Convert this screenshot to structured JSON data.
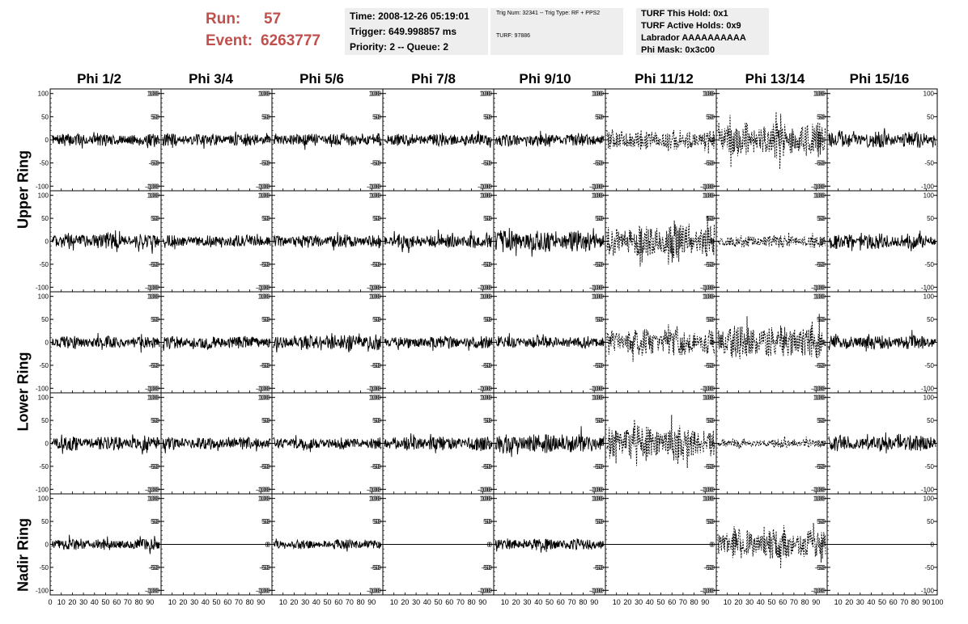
{
  "header": {
    "run_label": "Run:",
    "run_value": "57",
    "event_label": "Event:",
    "event_value": "6263777",
    "time": "Time: 2008-12-26 05:19:01",
    "trigger": "Trigger: 649.998857 ms",
    "priority": "Priority: 2 -- Queue: 2",
    "trig_num": "Trig Num: 32341 -- Trig Type: RF + PPS2",
    "turf": "TURF: 97886",
    "turf_this_hold": "TURF This Hold: 0x1",
    "turf_active_holds": "TURF Active Holds: 0x9",
    "labrador": "Labrador AAAAAAAAAA",
    "phi_mask": "Phi Mask: 0x3c00"
  },
  "columns": [
    "Phi 1/2",
    "Phi 3/4",
    "Phi 5/6",
    "Phi 7/8",
    "Phi 9/10",
    "Phi 11/12",
    "Phi 13/14",
    "Phi 15/16"
  ],
  "rows": [
    "Upper Ring",
    "Upper Ring",
    "Lower Ring",
    "Lower Ring",
    "Nadir Ring"
  ],
  "ring_labels": [
    "Upper Ring",
    "Lower Ring",
    "Nadir Ring"
  ],
  "chart_data": {
    "type": "line",
    "xlim": [
      0,
      100
    ],
    "ylim": [
      -110,
      110
    ],
    "y_ticks": [
      -100,
      -50,
      0,
      50,
      100
    ],
    "x_tick_labels": [
      "0",
      "10",
      "20",
      "30",
      "40",
      "50",
      "60",
      "70",
      "80",
      "90",
      "100"
    ],
    "line_color": "#000000",
    "masked_style": "dashed",
    "panels": [
      {
        "row": 0,
        "col": 0,
        "amplitude": 14,
        "style": "solid"
      },
      {
        "row": 0,
        "col": 1,
        "amplitude": 14,
        "style": "solid"
      },
      {
        "row": 0,
        "col": 2,
        "amplitude": 15,
        "style": "solid"
      },
      {
        "row": 0,
        "col": 3,
        "amplitude": 14,
        "style": "solid"
      },
      {
        "row": 0,
        "col": 4,
        "amplitude": 14,
        "style": "solid"
      },
      {
        "row": 0,
        "col": 5,
        "amplitude": 22,
        "style": "dashed"
      },
      {
        "row": 0,
        "col": 6,
        "amplitude": 40,
        "style": "dashed"
      },
      {
        "row": 0,
        "col": 7,
        "amplitude": 18,
        "style": "solid"
      },
      {
        "row": 1,
        "col": 0,
        "amplitude": 18,
        "style": "solid"
      },
      {
        "row": 1,
        "col": 1,
        "amplitude": 14,
        "style": "solid"
      },
      {
        "row": 1,
        "col": 2,
        "amplitude": 15,
        "style": "solid"
      },
      {
        "row": 1,
        "col": 3,
        "amplitude": 16,
        "style": "solid"
      },
      {
        "row": 1,
        "col": 4,
        "amplitude": 24,
        "style": "solid"
      },
      {
        "row": 1,
        "col": 5,
        "amplitude": 38,
        "style": "dashed"
      },
      {
        "row": 1,
        "col": 6,
        "amplitude": 14,
        "style": "dashed"
      },
      {
        "row": 1,
        "col": 7,
        "amplitude": 18,
        "style": "solid"
      },
      {
        "row": 2,
        "col": 0,
        "amplitude": 14,
        "style": "solid"
      },
      {
        "row": 2,
        "col": 1,
        "amplitude": 14,
        "style": "solid"
      },
      {
        "row": 2,
        "col": 2,
        "amplitude": 18,
        "style": "solid"
      },
      {
        "row": 2,
        "col": 3,
        "amplitude": 14,
        "style": "solid"
      },
      {
        "row": 2,
        "col": 4,
        "amplitude": 14,
        "style": "solid"
      },
      {
        "row": 2,
        "col": 5,
        "amplitude": 30,
        "style": "dashed"
      },
      {
        "row": 2,
        "col": 6,
        "amplitude": 38,
        "style": "dashed"
      },
      {
        "row": 2,
        "col": 7,
        "amplitude": 16,
        "style": "solid"
      },
      {
        "row": 3,
        "col": 0,
        "amplitude": 16,
        "style": "solid"
      },
      {
        "row": 3,
        "col": 1,
        "amplitude": 14,
        "style": "solid"
      },
      {
        "row": 3,
        "col": 2,
        "amplitude": 13,
        "style": "solid"
      },
      {
        "row": 3,
        "col": 3,
        "amplitude": 16,
        "style": "solid"
      },
      {
        "row": 3,
        "col": 4,
        "amplitude": 22,
        "style": "solid"
      },
      {
        "row": 3,
        "col": 5,
        "amplitude": 40,
        "style": "dashed"
      },
      {
        "row": 3,
        "col": 6,
        "amplitude": 10,
        "style": "dashed"
      },
      {
        "row": 3,
        "col": 7,
        "amplitude": 18,
        "style": "solid"
      },
      {
        "row": 4,
        "col": 0,
        "amplitude": 13,
        "style": "solid"
      },
      {
        "row": 4,
        "col": 1,
        "amplitude": 0,
        "style": "flat"
      },
      {
        "row": 4,
        "col": 2,
        "amplitude": 11,
        "style": "solid"
      },
      {
        "row": 4,
        "col": 3,
        "amplitude": 0,
        "style": "flat"
      },
      {
        "row": 4,
        "col": 4,
        "amplitude": 13,
        "style": "solid"
      },
      {
        "row": 4,
        "col": 5,
        "amplitude": 0,
        "style": "flat"
      },
      {
        "row": 4,
        "col": 6,
        "amplitude": 35,
        "style": "dashed"
      },
      {
        "row": 4,
        "col": 7,
        "amplitude": 0,
        "style": "flat"
      }
    ]
  }
}
